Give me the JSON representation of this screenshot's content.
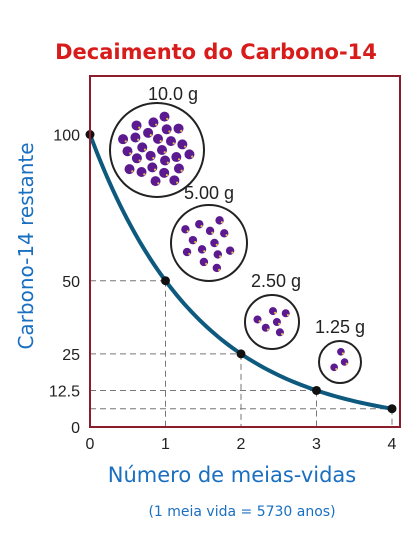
{
  "chart_data": {
    "type": "line",
    "title": "Decaimento do Carbono-14",
    "xlabel": "Número de meias-vidas",
    "ylabel": "Carbono-14 restante",
    "note": "(1 meia vida = 5730 anos)",
    "x": [
      0,
      1,
      2,
      3,
      4
    ],
    "y": [
      100,
      50,
      25,
      12.5,
      6.25
    ],
    "xlim": [
      0,
      4
    ],
    "ylim": [
      0,
      120
    ],
    "x_ticks": [
      "0",
      "1",
      "2",
      "3",
      "4"
    ],
    "y_ticks": [
      {
        "value": 0,
        "label": "0"
      },
      {
        "value": 12.5,
        "label": "12.5"
      },
      {
        "value": 25,
        "label": "25"
      },
      {
        "value": 50,
        "label": "50"
      },
      {
        "value": 100,
        "label": "100"
      }
    ],
    "samples": [
      {
        "label": "10.0 g",
        "atoms": 26
      },
      {
        "label": "5.00 g",
        "atoms": 13
      },
      {
        "label": "2.50 g",
        "atoms": 6
      },
      {
        "label": "1.25 g",
        "atoms": 3
      }
    ],
    "colors": {
      "title": "#d81b1b",
      "axis_labels": "#1a6fc0",
      "curve": "#0e5a7e",
      "frame": "#8a1c2c",
      "atom": "#5b1a8f"
    }
  }
}
